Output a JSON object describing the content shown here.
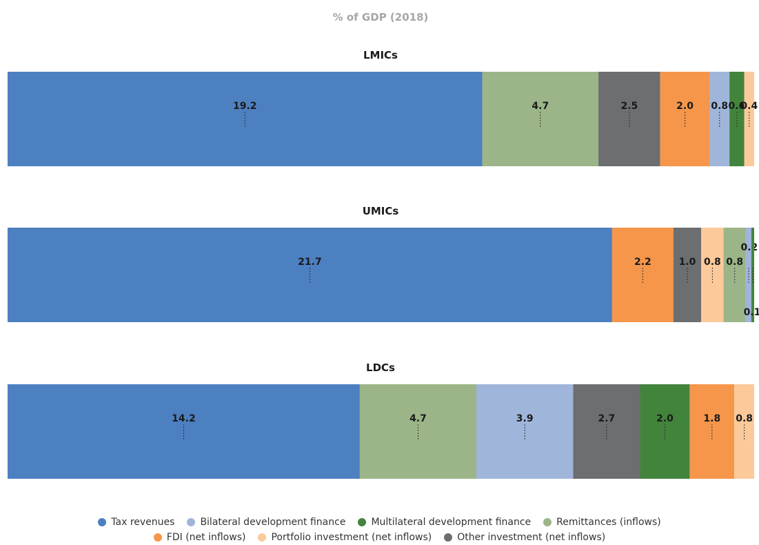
{
  "chart_data": {
    "type": "bar",
    "orientation": "horizontal-stacked",
    "title": "% of GDP (2018)",
    "series_meta": {
      "tax": {
        "name": "Tax revenues",
        "color": "#4d80c0"
      },
      "bilateral": {
        "name": "Bilateral development finance",
        "color": "#a0b5da"
      },
      "multilateral": {
        "name": "Multilateral development finance",
        "color": "#43843c"
      },
      "remittances": {
        "name": "Remittances (inflows)",
        "color": "#9bb588"
      },
      "fdi": {
        "name": "FDI (net inflows)",
        "color": "#f5964a"
      },
      "portfolio": {
        "name": "Portfolio investment (net inflows)",
        "color": "#fcc99a"
      },
      "other": {
        "name": "Other investment (net inflows)",
        "color": "#6d6e70"
      }
    },
    "legend_order": [
      [
        "tax",
        "bilateral",
        "multilateral",
        "remittances"
      ],
      [
        "fdi",
        "portfolio",
        "other"
      ]
    ],
    "groups": [
      {
        "name": "LMICs",
        "segments": [
          {
            "series": "tax",
            "value": 19.2,
            "label": "19.2"
          },
          {
            "series": "remittances",
            "value": 4.7,
            "label": "4.7"
          },
          {
            "series": "other",
            "value": 2.5,
            "label": "2.5"
          },
          {
            "series": "fdi",
            "value": 2.0,
            "label": "2.0"
          },
          {
            "series": "bilateral",
            "value": 0.8,
            "label": "0.8"
          },
          {
            "series": "multilateral",
            "value": 0.6,
            "label": "0.6"
          },
          {
            "series": "portfolio",
            "value": 0.4,
            "label": "0.4"
          }
        ]
      },
      {
        "name": "UMICs",
        "segments": [
          {
            "series": "tax",
            "value": 21.7,
            "label": "21.7"
          },
          {
            "series": "fdi",
            "value": 2.2,
            "label": "2.2"
          },
          {
            "series": "other",
            "value": 1.0,
            "label": "1.0"
          },
          {
            "series": "portfolio",
            "value": 0.8,
            "label": "0.8"
          },
          {
            "series": "remittances",
            "value": 0.8,
            "label": "0.8"
          },
          {
            "series": "bilateral",
            "value": 0.2,
            "label": "0.2"
          },
          {
            "series": "multilateral",
            "value": 0.1,
            "label": "0.1"
          }
        ]
      },
      {
        "name": "LDCs",
        "segments": [
          {
            "series": "tax",
            "value": 14.2,
            "label": "14.2"
          },
          {
            "series": "remittances",
            "value": 4.7,
            "label": "4.7"
          },
          {
            "series": "bilateral",
            "value": 3.9,
            "label": "3.9"
          },
          {
            "series": "other",
            "value": 2.7,
            "label": "2.7"
          },
          {
            "series": "multilateral",
            "value": 2.0,
            "label": "2.0"
          },
          {
            "series": "fdi",
            "value": 1.8,
            "label": "1.8"
          },
          {
            "series": "portfolio",
            "value": 0.8,
            "label": "0.8"
          }
        ]
      }
    ]
  }
}
